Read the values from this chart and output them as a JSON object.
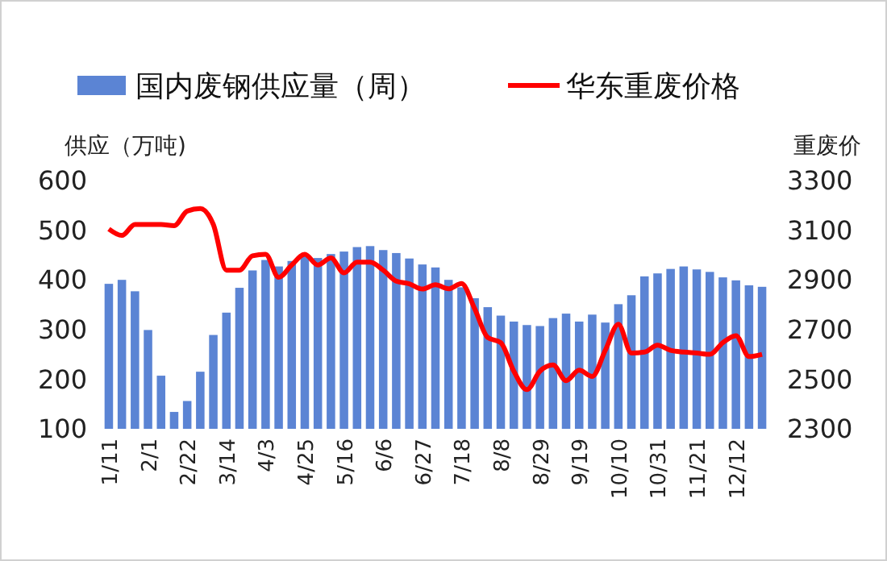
{
  "chart_data": {
    "type": "bar",
    "ylabel": "供应（万吨)",
    "y2label": "重废价",
    "categories": [
      "1/11",
      null,
      null,
      "2/1",
      null,
      null,
      "2/22",
      null,
      null,
      "3/14",
      null,
      null,
      "4/3",
      null,
      null,
      "4/25",
      null,
      null,
      "5/16",
      null,
      null,
      "6/6",
      null,
      null,
      "6/27",
      null,
      null,
      "7/18",
      null,
      null,
      "8/8",
      null,
      null,
      "8/29",
      null,
      null,
      "9/19",
      null,
      null,
      "10/10",
      null,
      null,
      "10/31",
      null,
      null,
      "11/21",
      null,
      null,
      "12/12",
      null,
      null
    ],
    "series": [
      {
        "name": "国内废钢供应量（周）",
        "color": "#5b84d4",
        "values": [
          392,
          400,
          377,
          299,
          207,
          134,
          156,
          215,
          289,
          334,
          384,
          419,
          440,
          427,
          438,
          449,
          444,
          452,
          457,
          466,
          468,
          460,
          454,
          443,
          431,
          425,
          400,
          385,
          363,
          345,
          328,
          316,
          309,
          307,
          323,
          332,
          316,
          330,
          314,
          351,
          369,
          407,
          413,
          422,
          427,
          421,
          416,
          405,
          399,
          389,
          386
        ]
      },
      {
        "name": "华东重废价格",
        "type": "line",
        "axis": "y2",
        "color": "#ff0000",
        "values": [
          3105,
          3079,
          3123,
          3123,
          3123,
          3118,
          3177,
          3187,
          3123,
          2939,
          2939,
          2997,
          3003,
          2910,
          2960,
          3003,
          2960,
          2988,
          2928,
          2971,
          2971,
          2939,
          2895,
          2884,
          2863,
          2880,
          2864,
          2885,
          2784,
          2668,
          2647,
          2532,
          2458,
          2532,
          2557,
          2494,
          2536,
          2511,
          2616,
          2721,
          2605,
          2609,
          2637,
          2616,
          2609,
          2605,
          2600,
          2647,
          2675,
          2591,
          2600
        ]
      }
    ],
    "ylim": [
      100,
      600
    ],
    "yticks": [
      100,
      200,
      300,
      400,
      500,
      600
    ],
    "y2lim": [
      2300,
      3300
    ],
    "y2ticks": [
      2300,
      2500,
      2700,
      2900,
      3100,
      3300
    ],
    "grid": false,
    "legend": "top"
  }
}
